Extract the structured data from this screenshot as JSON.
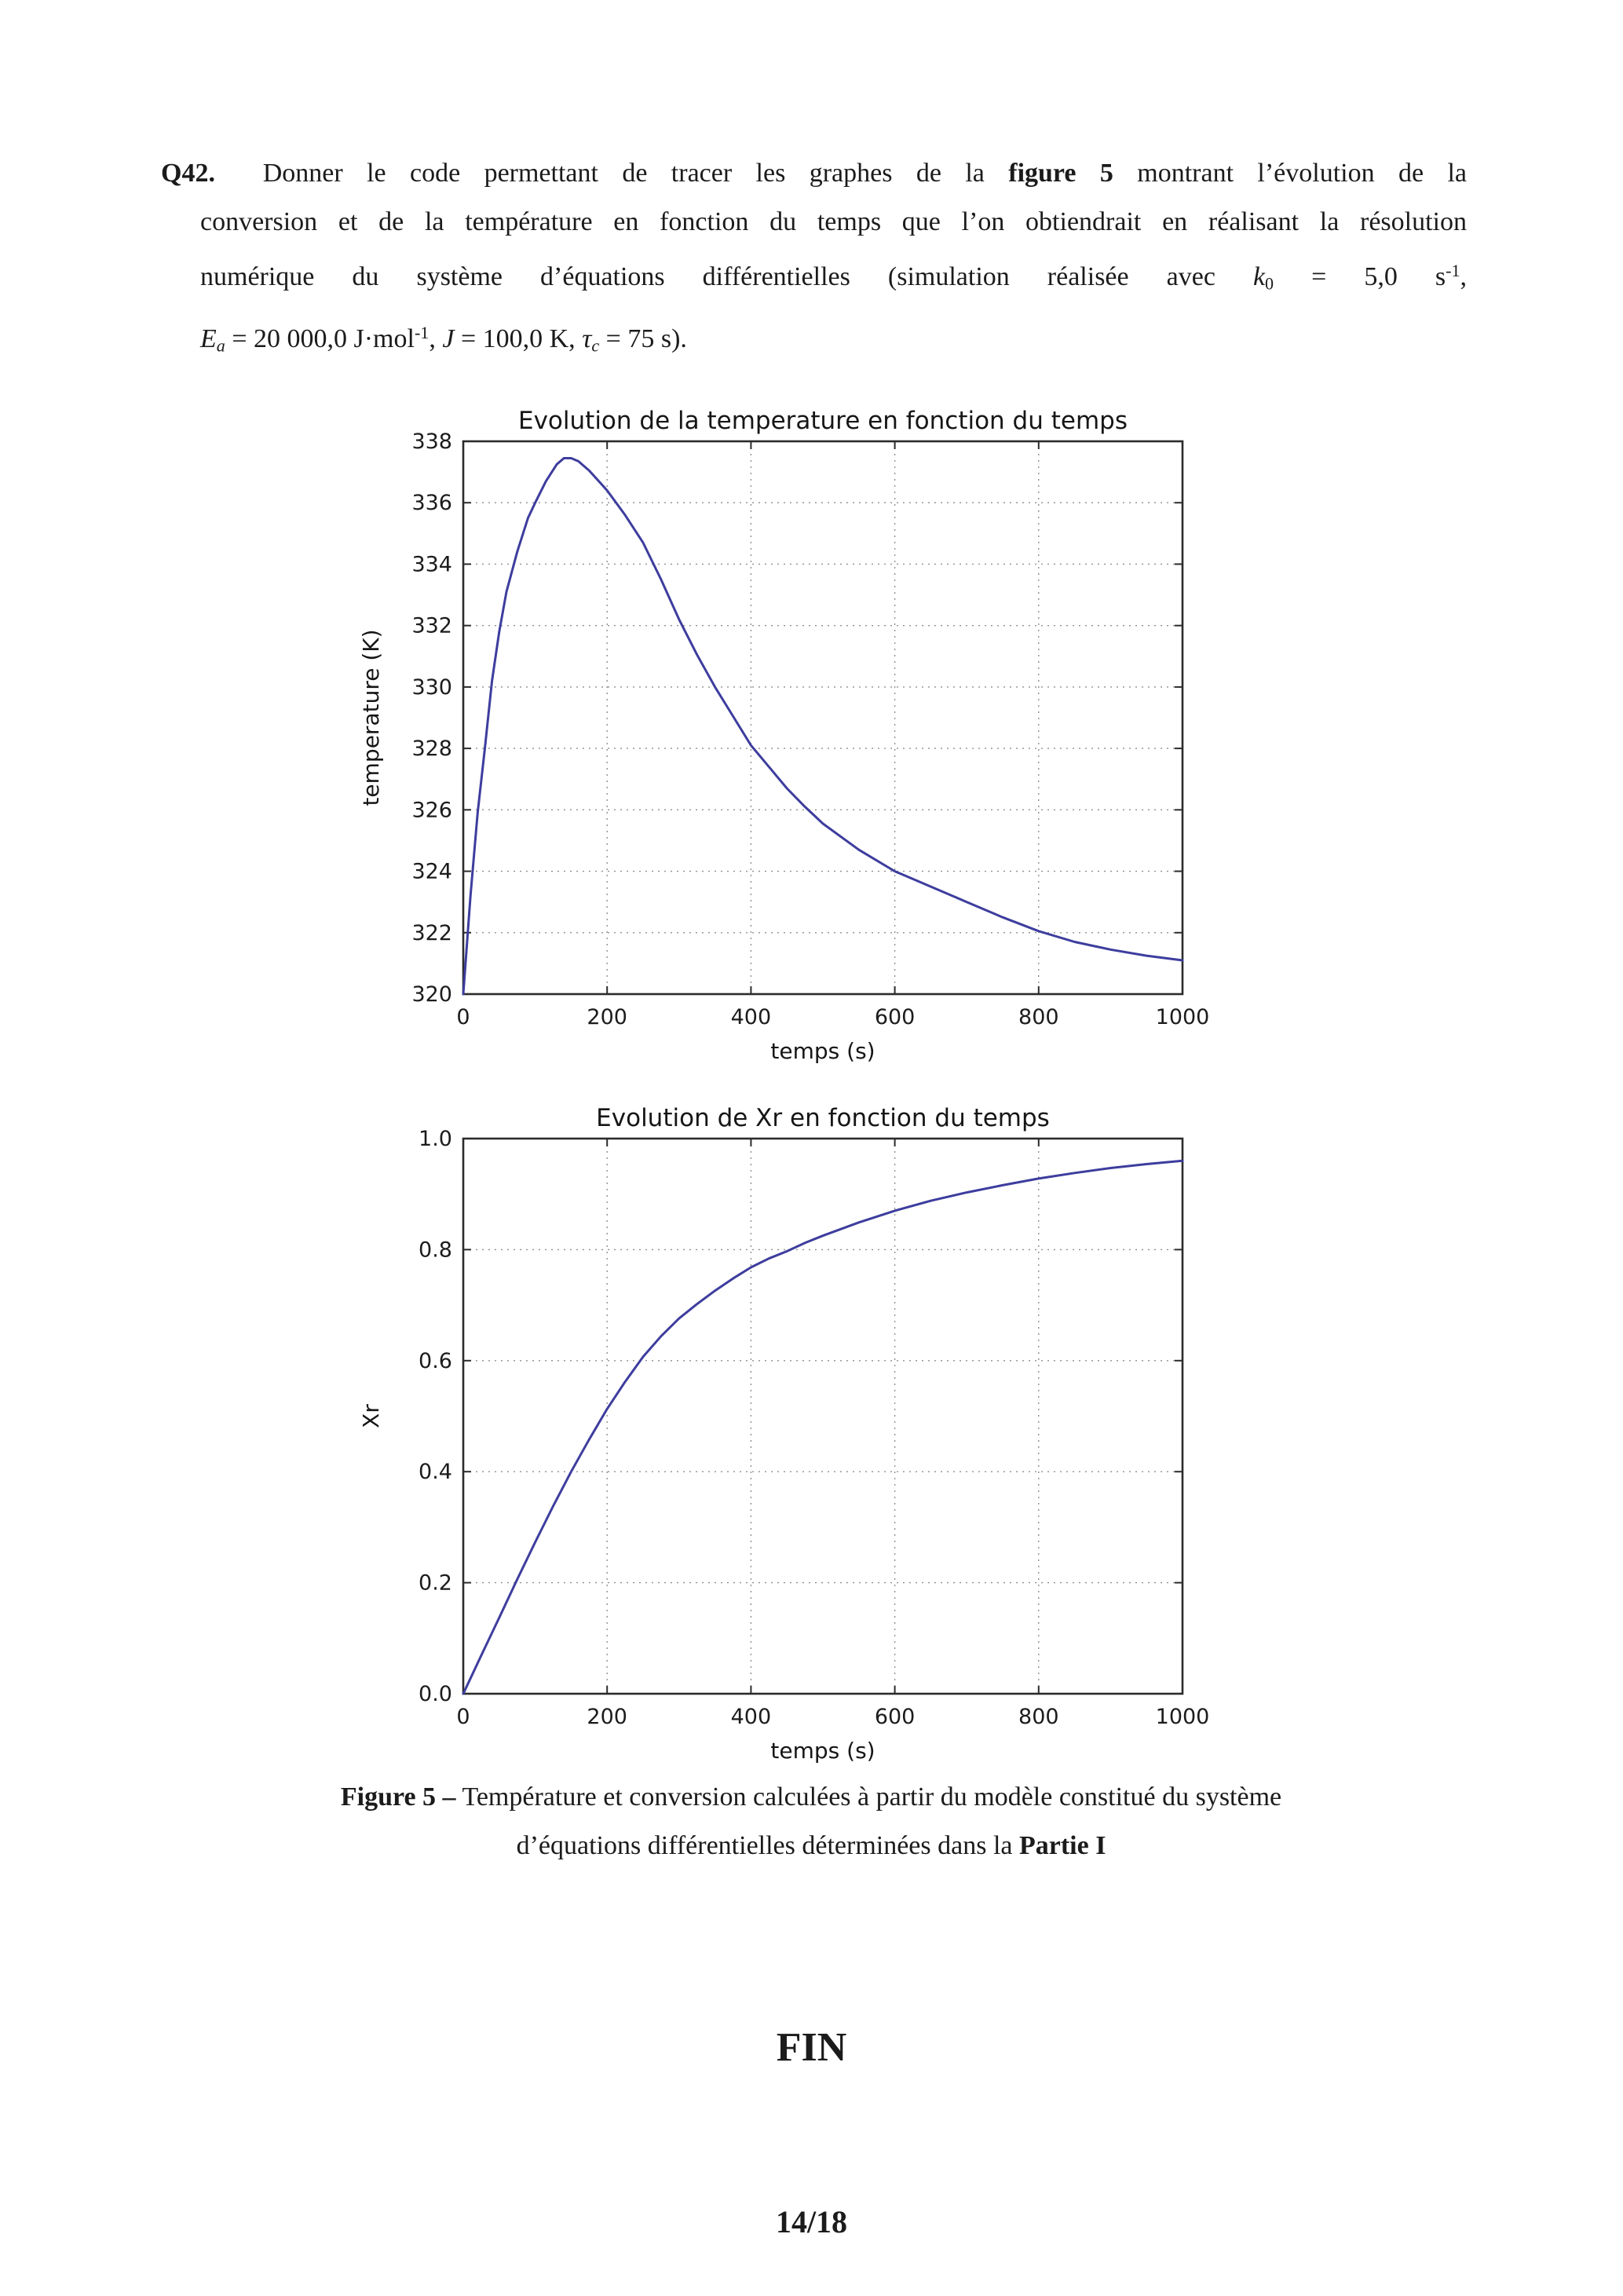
{
  "question": {
    "lines": [
      {
        "runs": [
          {
            "t": "Q42.",
            "b": 1
          },
          {
            "t": "  Donner le code permettant de tracer les graphes de la "
          },
          {
            "t": "figure 5",
            "b": 1
          },
          {
            "t": " montrant l’évolution de la"
          }
        ]
      },
      {
        "runs": [
          {
            "t": "conversion et de la température en fonction du temps que l’on obtiendrait en réalisant la résolution"
          }
        ]
      },
      {
        "runs": [
          {
            "t": "numérique du système d’équations différentielles (simulation réalisée avec "
          },
          {
            "t": "k",
            "i": 1
          },
          {
            "t": "0",
            "sub": 1
          },
          {
            "t": " = 5,0 s"
          },
          {
            "t": "-1",
            "sup": 1
          },
          {
            "t": ","
          }
        ]
      },
      {
        "runs": [
          {
            "t": "E",
            "i": 1
          },
          {
            "t": "a",
            "sub": 1,
            "i": 1
          },
          {
            "t": " = 20 000,0 J·mol"
          },
          {
            "t": "-1",
            "sup": 1
          },
          {
            "t": ", "
          },
          {
            "t": "J",
            "i": 1
          },
          {
            "t": " = 100,0 K, "
          },
          {
            "t": "τ",
            "i": 1
          },
          {
            "t": "c",
            "sub": 1,
            "i": 1
          },
          {
            "t": " = 75 s)."
          }
        ]
      }
    ]
  },
  "caption": {
    "lines": [
      {
        "runs": [
          {
            "t": "Figure 5 –",
            "b": 1
          },
          {
            "t": " Température et conversion calculées à partir du modèle constitué du système"
          }
        ]
      },
      {
        "runs": [
          {
            "t": "d’équations différentielles déterminées dans la "
          },
          {
            "t": "Partie I",
            "b": 1
          }
        ]
      }
    ]
  },
  "fin_label": "FIN",
  "page_number": "14/18",
  "chart_data": [
    {
      "type": "line",
      "title": "Evolution de la temperature en fonction du temps",
      "xlabel": "temps (s)",
      "ylabel": "temperature (K)",
      "xlim": [
        0,
        1000
      ],
      "ylim": [
        320,
        338
      ],
      "xticks": [
        0,
        200,
        400,
        600,
        800,
        1000
      ],
      "xtick_labels": [
        "0",
        "200",
        "400",
        "600",
        "800",
        "1000"
      ],
      "yticks": [
        320,
        322,
        324,
        326,
        328,
        330,
        332,
        334,
        336,
        338
      ],
      "ytick_labels": [
        "320",
        "322",
        "324",
        "326",
        "328",
        "330",
        "332",
        "334",
        "336",
        "338"
      ],
      "grid": true,
      "legend": null,
      "line_color": "#3d3d9e",
      "series": [
        {
          "name": "temperature",
          "points": [
            [
              0,
              320.0
            ],
            [
              10,
              323.2
            ],
            [
              20,
              325.9
            ],
            [
              30,
              328.0
            ],
            [
              40,
              330.2
            ],
            [
              50,
              331.8
            ],
            [
              60,
              333.1
            ],
            [
              75,
              334.4
            ],
            [
              90,
              335.5
            ],
            [
              100,
              336.0
            ],
            [
              115,
              336.7
            ],
            [
              130,
              337.25
            ],
            [
              140,
              337.45
            ],
            [
              150,
              337.45
            ],
            [
              160,
              337.35
            ],
            [
              175,
              337.05
            ],
            [
              200,
              336.4
            ],
            [
              225,
              335.6
            ],
            [
              250,
              334.7
            ],
            [
              275,
              333.5
            ],
            [
              300,
              332.2
            ],
            [
              325,
              331.05
            ],
            [
              350,
              330.0
            ],
            [
              375,
              329.05
            ],
            [
              400,
              328.1
            ],
            [
              425,
              327.4
            ],
            [
              450,
              326.7
            ],
            [
              475,
              326.1
            ],
            [
              500,
              325.55
            ],
            [
              550,
              324.7
            ],
            [
              600,
              324.0
            ],
            [
              650,
              323.5
            ],
            [
              700,
              323.0
            ],
            [
              750,
              322.5
            ],
            [
              800,
              322.05
            ],
            [
              850,
              321.7
            ],
            [
              900,
              321.45
            ],
            [
              950,
              321.25
            ],
            [
              1000,
              321.1
            ]
          ]
        }
      ]
    },
    {
      "type": "line",
      "title": "Evolution de Xr en fonction du temps",
      "xlabel": "temps (s)",
      "ylabel": "Xr",
      "xlim": [
        0,
        1000
      ],
      "ylim": [
        0.0,
        1.0
      ],
      "xticks": [
        0,
        200,
        400,
        600,
        800,
        1000
      ],
      "xtick_labels": [
        "0",
        "200",
        "400",
        "600",
        "800",
        "1000"
      ],
      "yticks": [
        0.0,
        0.2,
        0.4,
        0.6,
        0.8,
        1.0
      ],
      "ytick_labels": [
        "0.0",
        "0.2",
        "0.4",
        "0.6",
        "0.8",
        "1.0"
      ],
      "grid": true,
      "legend": null,
      "line_color": "#3d3d9e",
      "series": [
        {
          "name": "Xr",
          "points": [
            [
              0,
              0.0
            ],
            [
              25,
              0.069
            ],
            [
              50,
              0.137
            ],
            [
              75,
              0.206
            ],
            [
              100,
              0.273
            ],
            [
              125,
              0.338
            ],
            [
              150,
              0.4
            ],
            [
              175,
              0.458
            ],
            [
              200,
              0.513
            ],
            [
              225,
              0.562
            ],
            [
              250,
              0.607
            ],
            [
              275,
              0.644
            ],
            [
              300,
              0.676
            ],
            [
              325,
              0.702
            ],
            [
              350,
              0.726
            ],
            [
              375,
              0.748
            ],
            [
              400,
              0.768
            ],
            [
              425,
              0.784
            ],
            [
              450,
              0.797
            ],
            [
              475,
              0.812
            ],
            [
              500,
              0.825
            ],
            [
              550,
              0.849
            ],
            [
              600,
              0.87
            ],
            [
              650,
              0.888
            ],
            [
              700,
              0.903
            ],
            [
              750,
              0.916
            ],
            [
              800,
              0.928
            ],
            [
              850,
              0.938
            ],
            [
              900,
              0.947
            ],
            [
              950,
              0.954
            ],
            [
              1000,
              0.96
            ]
          ]
        }
      ]
    }
  ]
}
